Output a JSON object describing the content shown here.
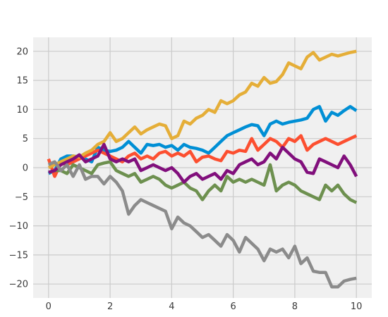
{
  "chart_data": {
    "type": "line",
    "title": "",
    "xlabel": "",
    "ylabel": "",
    "xlim": [
      -0.5,
      10.5
    ],
    "ylim": [
      -22.4,
      22.4
    ],
    "xticks": [
      0,
      2,
      4,
      6,
      8,
      10
    ],
    "yticks": [
      -20,
      -15,
      -10,
      -5,
      0,
      5,
      10,
      15,
      20
    ],
    "grid": true,
    "legend": "none",
    "x": [
      0,
      0.2,
      0.4,
      0.6,
      0.8,
      1.0,
      1.2,
      1.4,
      1.6,
      1.8,
      2.0,
      2.2,
      2.4,
      2.6,
      2.8,
      3.0,
      3.2,
      3.4,
      3.6,
      3.8,
      4.0,
      4.2,
      4.4,
      4.6,
      4.8,
      5.0,
      5.2,
      5.4,
      5.6,
      5.8,
      6.0,
      6.2,
      6.4,
      6.6,
      6.8,
      7.0,
      7.2,
      7.4,
      7.6,
      7.8,
      8.0,
      8.2,
      8.4,
      8.6,
      8.8,
      9.0,
      9.2,
      9.4,
      9.6,
      9.8,
      10.0
    ],
    "series": [
      {
        "color": "#008fd5",
        "values": [
          -1.0,
          -0.5,
          1.5,
          2.0,
          2.0,
          1.8,
          1.5,
          1.0,
          3.5,
          3.0,
          2.8,
          3.0,
          3.5,
          4.5,
          3.5,
          2.5,
          4.0,
          3.8,
          4.0,
          3.5,
          3.8,
          3.0,
          4.0,
          3.5,
          3.3,
          3.0,
          2.5,
          3.5,
          4.5,
          5.5,
          6.0,
          6.5,
          7.0,
          7.4,
          7.2,
          5.5,
          7.5,
          8.0,
          7.5,
          7.8,
          8.0,
          8.2,
          8.5,
          10.0,
          10.5,
          8.0,
          9.5,
          9.0,
          9.8,
          10.5,
          9.8
        ]
      },
      {
        "color": "#fc4f30",
        "values": [
          1.5,
          -1.5,
          0.8,
          0.5,
          1.0,
          1.5,
          2.0,
          2.5,
          3.0,
          2.5,
          2.0,
          1.5,
          1.0,
          2.0,
          2.5,
          1.5,
          2.0,
          1.5,
          2.5,
          2.8,
          2.0,
          2.5,
          2.0,
          2.8,
          1.0,
          1.8,
          2.0,
          1.5,
          1.2,
          2.8,
          2.5,
          3.0,
          2.8,
          5.0,
          3.0,
          4.0,
          5.0,
          4.5,
          3.5,
          5.0,
          4.5,
          5.5,
          3.0,
          4.0,
          4.5,
          5.0,
          4.5,
          4.0,
          4.5,
          5.0,
          5.5
        ]
      },
      {
        "color": "#e5ae38",
        "values": [
          0.0,
          0.5,
          1.0,
          1.5,
          2.0,
          1.8,
          2.5,
          3.0,
          4.0,
          4.5,
          6.0,
          4.5,
          5.0,
          6.0,
          7.0,
          5.8,
          6.5,
          7.0,
          7.5,
          7.2,
          5.0,
          5.5,
          8.0,
          7.5,
          8.5,
          9.0,
          10.0,
          9.5,
          11.5,
          11.0,
          11.5,
          12.5,
          13.0,
          14.5,
          14.0,
          15.5,
          14.5,
          14.8,
          16.0,
          18.0,
          17.5,
          17.0,
          19.0,
          19.8,
          18.5,
          19.0,
          19.5,
          19.2,
          19.5,
          19.8,
          20.0
        ]
      },
      {
        "color": "#6d904f",
        "values": [
          -0.8,
          -0.5,
          -0.5,
          -1.0,
          0.5,
          0.0,
          -0.5,
          -1.0,
          0.5,
          0.8,
          1.0,
          -0.5,
          -1.0,
          -1.5,
          -1.0,
          -2.5,
          -2.0,
          -1.5,
          -2.0,
          -3.0,
          -3.5,
          -3.0,
          -2.5,
          -3.5,
          -4.0,
          -5.5,
          -4.0,
          -3.0,
          -4.0,
          -1.5,
          -2.5,
          -2.0,
          -2.5,
          -2.0,
          -2.5,
          -3.0,
          0.5,
          -4.0,
          -3.0,
          -2.5,
          -3.0,
          -4.0,
          -4.5,
          -5.0,
          -5.5,
          -3.0,
          -4.0,
          -3.0,
          -4.5,
          -5.5,
          -6.0
        ]
      },
      {
        "color": "#810f7c",
        "values": [
          -0.8,
          -0.5,
          0.5,
          1.0,
          1.5,
          2.2,
          1.0,
          1.5,
          2.0,
          4.0,
          1.5,
          1.0,
          1.5,
          1.0,
          1.5,
          -0.5,
          0.0,
          0.5,
          0.0,
          -0.5,
          0.0,
          -1.0,
          -2.5,
          -1.5,
          -1.0,
          -2.0,
          -1.5,
          -1.0,
          -2.0,
          -0.5,
          -1.0,
          0.5,
          1.0,
          1.5,
          0.5,
          1.0,
          2.5,
          1.5,
          3.5,
          2.5,
          1.5,
          1.0,
          -0.8,
          -1.0,
          1.5,
          1.0,
          0.5,
          0.0,
          2.0,
          0.5,
          -1.5
        ]
      },
      {
        "color": "#8b8b8b",
        "values": [
          0.5,
          1.0,
          -0.5,
          0.5,
          -1.5,
          0.5,
          -2.0,
          -1.5,
          -1.5,
          -2.8,
          -1.5,
          -2.5,
          -4.0,
          -8.0,
          -6.5,
          -5.5,
          -6.0,
          -6.5,
          -7.0,
          -7.5,
          -10.5,
          -8.5,
          -9.5,
          -10.0,
          -11.0,
          -12.0,
          -11.5,
          -12.5,
          -13.5,
          -11.5,
          -12.5,
          -14.5,
          -12.0,
          -13.0,
          -14.0,
          -16.0,
          -14.0,
          -14.5,
          -14.0,
          -15.5,
          -13.5,
          -16.5,
          -15.5,
          -17.8,
          -18.0,
          -18.0,
          -20.5,
          -20.5,
          -19.5,
          -19.2,
          -19.0
        ]
      }
    ]
  }
}
